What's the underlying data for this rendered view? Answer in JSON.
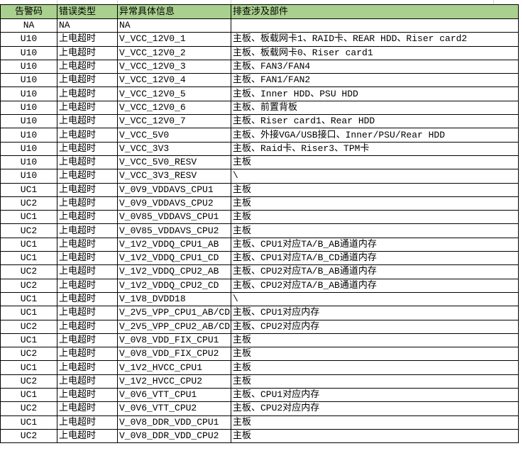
{
  "headers": [
    "告警码",
    "错误类型",
    "异常具体信息",
    "排查涉及部件"
  ],
  "rows": [
    [
      "NA",
      "NA",
      "NA",
      ""
    ],
    [
      "U10",
      "上电超时",
      "V_VCC_12V0_1",
      "主板、板载网卡1、RAID卡、REAR HDD、Riser card2"
    ],
    [
      "U10",
      "上电超时",
      "V_VCC_12V0_2",
      "主板、板载网卡0、Riser card1"
    ],
    [
      "U10",
      "上电超时",
      "V_VCC_12V0_3",
      "主板、FAN3/FAN4"
    ],
    [
      "U10",
      "上电超时",
      "V_VCC_12V0_4",
      "主板、FAN1/FAN2"
    ],
    [
      "U10",
      "上电超时",
      "V_VCC_12V0_5",
      "主板、Inner HDD、PSU HDD"
    ],
    [
      "U10",
      "上电超时",
      "V_VCC_12V0_6",
      "主板、前置背板"
    ],
    [
      "U10",
      "上电超时",
      "V_VCC_12V0_7",
      "主板、Riser card1、Rear HDD"
    ],
    [
      "U10",
      "上电超时",
      "V_VCC_5V0",
      "主板、外接VGA/USB接口、Inner/PSU/Rear HDD"
    ],
    [
      "U10",
      "上电超时",
      "V_VCC_3V3",
      "主板、Raid卡、Riser3、TPM卡"
    ],
    [
      "U10",
      "上电超时",
      "V_VCC_5V0_RESV",
      "主板"
    ],
    [
      "U10",
      "上电超时",
      "V_VCC_3V3_RESV",
      "\\"
    ],
    [
      "UC1",
      "上电超时",
      "V_0V9_VDDAVS_CPU1",
      "主板"
    ],
    [
      "UC2",
      "上电超时",
      "V_0V9_VDDAVS_CPU2",
      "主板"
    ],
    [
      "UC1",
      "上电超时",
      "V_0V85_VDDAVS_CPU1",
      "主板"
    ],
    [
      "UC2",
      "上电超时",
      "V_0V85_VDDAVS_CPU2",
      "主板"
    ],
    [
      "UC1",
      "上电超时",
      "V_1V2_VDDQ_CPU1_AB",
      "主板、CPU1对应TA/B_AB通道内存"
    ],
    [
      "UC1",
      "上电超时",
      "V_1V2_VDDQ_CPU1_CD",
      "主板、CPU1对应TA/B_CD通道内存"
    ],
    [
      "UC2",
      "上电超时",
      "V_1V2_VDDQ_CPU2_AB",
      "主板、CPU2对应TA/B_AB通道内存"
    ],
    [
      "UC2",
      "上电超时",
      "V_1V2_VDDQ_CPU2_CD",
      "主板、CPU2对应TA/B_AB通道内存"
    ],
    [
      "UC1",
      "上电超时",
      "V_1V8_DVDD18",
      "\\"
    ],
    [
      "UC1",
      "上电超时",
      "V_2V5_VPP_CPU1_AB/CD",
      "主板、CPU1对应内存"
    ],
    [
      "UC2",
      "上电超时",
      "V_2V5_VPP_CPU2_AB/CD",
      "主板、CPU2对应内存"
    ],
    [
      "UC1",
      "上电超时",
      "V_0V8_VDD_FIX_CPU1",
      "主板"
    ],
    [
      "UC2",
      "上电超时",
      "V_0V8_VDD_FIX_CPU2",
      "主板"
    ],
    [
      "UC1",
      "上电超时",
      "V_1V2_HVCC_CPU1",
      "主板"
    ],
    [
      "UC2",
      "上电超时",
      "V_1V2_HVCC_CPU2",
      "主板"
    ],
    [
      "UC1",
      "上电超时",
      "V_0V6_VTT_CPU1",
      "主板、CPU1对应内存"
    ],
    [
      "UC2",
      "上电超时",
      "V_0V6_VTT_CPU2",
      "主板、CPU2对应内存"
    ],
    [
      "UC1",
      "上电超时",
      "V_0V8_DDR_VDD_CPU1",
      "主板"
    ],
    [
      "UC2",
      "上电超时",
      "V_0V8_DDR_VDD_CPU2",
      "主板"
    ]
  ],
  "colors": {
    "header_bg": "#a9d08e",
    "border": "#000000"
  }
}
